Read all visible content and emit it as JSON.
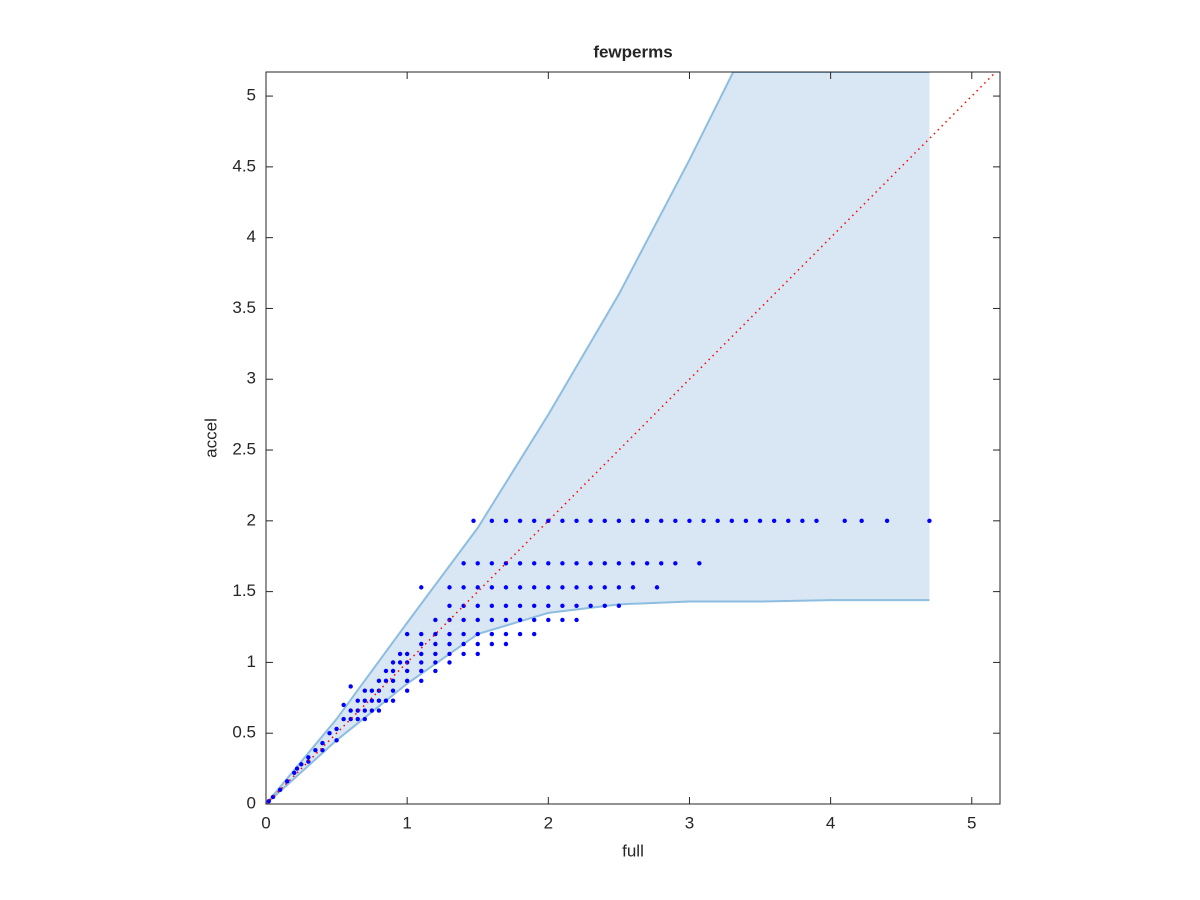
{
  "chart_data": {
    "type": "scatter",
    "title": "fewperms",
    "x_label": "full",
    "y_label": "accel",
    "xlim": [
      0,
      5.2
    ],
    "ylim": [
      0,
      5.17
    ],
    "xticks": [
      0,
      1,
      2,
      3,
      4,
      5
    ],
    "yticks": [
      0,
      0.5,
      1,
      1.5,
      2,
      2.5,
      3,
      3.5,
      4,
      4.5,
      5
    ],
    "band": {
      "color": "#d8e7f3",
      "edge_color": "#8dbde0",
      "upper": {
        "x": [
          0,
          0.5,
          1,
          1.5,
          2,
          2.5,
          3,
          3.31,
          4.7
        ],
        "y": [
          0,
          0.6,
          1.28,
          1.95,
          2.75,
          3.6,
          4.55,
          5.17,
          5.17
        ]
      },
      "lower": {
        "x": [
          0,
          0.5,
          1,
          1.5,
          2,
          2.5,
          3,
          3.5,
          4,
          4.7
        ],
        "y": [
          0,
          0.45,
          0.85,
          1.2,
          1.35,
          1.41,
          1.43,
          1.43,
          1.44,
          1.44
        ]
      }
    },
    "reference_line": {
      "color": "#ff0000",
      "x": [
        0,
        5.2
      ],
      "y": [
        0,
        5.2
      ]
    },
    "points": {
      "color": "#0000ff",
      "x": [
        1.47,
        1.6,
        1.7,
        1.8,
        1.9,
        2.0,
        2.1,
        2.2,
        2.3,
        2.4,
        2.5,
        2.6,
        2.7,
        2.8,
        2.9,
        3.0,
        3.1,
        3.2,
        3.3,
        3.4,
        3.5,
        3.6,
        3.7,
        3.8,
        3.9,
        4.1,
        4.22,
        4.4,
        4.7,
        1.4,
        1.5,
        1.6,
        1.7,
        1.8,
        1.9,
        2.0,
        2.1,
        2.2,
        2.3,
        2.4,
        2.5,
        2.6,
        2.7,
        2.8,
        2.9,
        3.07,
        1.1,
        1.3,
        1.4,
        1.5,
        1.6,
        1.7,
        1.8,
        1.9,
        2.0,
        2.1,
        2.2,
        2.3,
        2.4,
        2.5,
        2.6,
        2.77,
        1.3,
        1.4,
        1.5,
        1.6,
        1.7,
        1.8,
        1.9,
        2.0,
        2.1,
        2.2,
        2.3,
        2.4,
        2.5,
        1.2,
        1.3,
        1.4,
        1.5,
        1.6,
        1.7,
        1.8,
        1.9,
        2.0,
        2.1,
        2.2,
        1.0,
        1.1,
        1.2,
        1.3,
        1.4,
        1.5,
        1.6,
        1.7,
        1.8,
        1.9,
        1.1,
        1.2,
        1.3,
        1.4,
        1.5,
        1.6,
        1.7,
        0.95,
        1.0,
        1.1,
        1.2,
        1.3,
        1.4,
        1.5,
        0.9,
        0.95,
        1.0,
        1.1,
        1.2,
        1.3,
        0.85,
        0.9,
        1.0,
        1.1,
        1.2,
        0.8,
        0.85,
        0.9,
        1.0,
        1.1,
        0.7,
        0.75,
        0.8,
        0.9,
        1.0,
        0.65,
        0.7,
        0.75,
        0.8,
        0.85,
        0.9,
        0.6,
        0.65,
        0.7,
        0.75,
        0.8,
        0.55,
        0.6,
        0.65,
        0.7,
        0.5,
        0.45,
        0.4,
        0.35,
        0.3,
        0.25,
        0.2,
        0.15,
        0.1,
        0.05,
        0.02,
        0.5,
        0.4,
        0.3,
        0.22,
        0.6,
        0.55
      ],
      "y": [
        2,
        2,
        2,
        2,
        2,
        2,
        2,
        2,
        2,
        2,
        2,
        2,
        2,
        2,
        2,
        2,
        2,
        2,
        2,
        2,
        2,
        2,
        2,
        2,
        2,
        2,
        2,
        2,
        2,
        1.7,
        1.7,
        1.7,
        1.7,
        1.7,
        1.7,
        1.7,
        1.7,
        1.7,
        1.7,
        1.7,
        1.7,
        1.7,
        1.7,
        1.7,
        1.7,
        1.7,
        1.53,
        1.53,
        1.53,
        1.53,
        1.53,
        1.53,
        1.53,
        1.53,
        1.53,
        1.53,
        1.53,
        1.53,
        1.53,
        1.53,
        1.53,
        1.53,
        1.4,
        1.4,
        1.4,
        1.4,
        1.4,
        1.4,
        1.4,
        1.4,
        1.4,
        1.4,
        1.4,
        1.4,
        1.4,
        1.3,
        1.3,
        1.3,
        1.3,
        1.3,
        1.3,
        1.3,
        1.3,
        1.3,
        1.3,
        1.3,
        1.2,
        1.2,
        1.2,
        1.2,
        1.2,
        1.2,
        1.2,
        1.2,
        1.2,
        1.2,
        1.13,
        1.13,
        1.13,
        1.13,
        1.13,
        1.13,
        1.13,
        1.06,
        1.06,
        1.06,
        1.06,
        1.06,
        1.06,
        1.06,
        1.0,
        1.0,
        1.0,
        1.0,
        1.0,
        1.0,
        0.94,
        0.94,
        0.94,
        0.94,
        0.94,
        0.87,
        0.87,
        0.87,
        0.87,
        0.87,
        0.8,
        0.8,
        0.8,
        0.8,
        0.8,
        0.73,
        0.73,
        0.73,
        0.73,
        0.73,
        0.73,
        0.66,
        0.66,
        0.66,
        0.66,
        0.66,
        0.6,
        0.6,
        0.6,
        0.6,
        0.53,
        0.5,
        0.43,
        0.38,
        0.33,
        0.28,
        0.22,
        0.16,
        0.1,
        0.05,
        0.02,
        0.45,
        0.38,
        0.3,
        0.25,
        0.83,
        0.7
      ]
    }
  }
}
